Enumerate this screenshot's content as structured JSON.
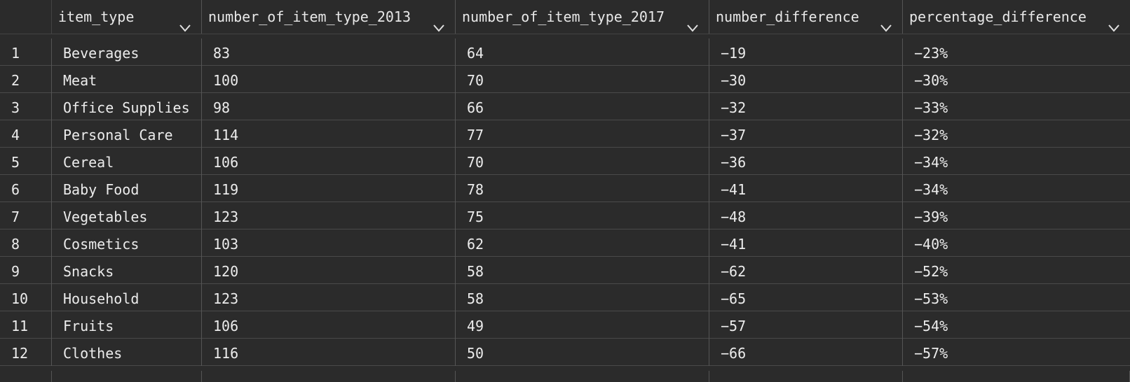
{
  "columns": [
    {
      "label": ""
    },
    {
      "label": "item_type"
    },
    {
      "label": "number_of_item_type_2013"
    },
    {
      "label": "number_of_item_type_2017"
    },
    {
      "label": "number_difference"
    },
    {
      "label": "percentage_difference"
    }
  ],
  "rows": [
    {
      "idx": "1",
      "item_type": "Beverages",
      "n2013": "83",
      "n2017": "64",
      "diff": "−19",
      "pct": "−23%"
    },
    {
      "idx": "2",
      "item_type": "Meat",
      "n2013": "100",
      "n2017": "70",
      "diff": "−30",
      "pct": "−30%"
    },
    {
      "idx": "3",
      "item_type": "Office Supplies",
      "n2013": "98",
      "n2017": "66",
      "diff": "−32",
      "pct": "−33%"
    },
    {
      "idx": "4",
      "item_type": "Personal Care",
      "n2013": "114",
      "n2017": "77",
      "diff": "−37",
      "pct": "−32%"
    },
    {
      "idx": "5",
      "item_type": "Cereal",
      "n2013": "106",
      "n2017": "70",
      "diff": "−36",
      "pct": "−34%"
    },
    {
      "idx": "6",
      "item_type": "Baby Food",
      "n2013": "119",
      "n2017": "78",
      "diff": "−41",
      "pct": "−34%"
    },
    {
      "idx": "7",
      "item_type": "Vegetables",
      "n2013": "123",
      "n2017": "75",
      "diff": "−48",
      "pct": "−39%"
    },
    {
      "idx": "8",
      "item_type": "Cosmetics",
      "n2013": "103",
      "n2017": "62",
      "diff": "−41",
      "pct": "−40%"
    },
    {
      "idx": "9",
      "item_type": "Snacks",
      "n2013": "120",
      "n2017": "58",
      "diff": "−62",
      "pct": "−52%"
    },
    {
      "idx": "10",
      "item_type": "Household",
      "n2013": "123",
      "n2017": "58",
      "diff": "−65",
      "pct": "−53%"
    },
    {
      "idx": "11",
      "item_type": "Fruits",
      "n2013": "106",
      "n2017": "49",
      "diff": "−57",
      "pct": "−54%"
    },
    {
      "idx": "12",
      "item_type": "Clothes",
      "n2013": "116",
      "n2017": "50",
      "diff": "−66",
      "pct": "−57%"
    }
  ],
  "icons": {
    "sort": "chevron-down-icon"
  },
  "colors": {
    "background": "#2b2b2b",
    "text": "#e8e8e8",
    "grid_line": "#555555"
  }
}
